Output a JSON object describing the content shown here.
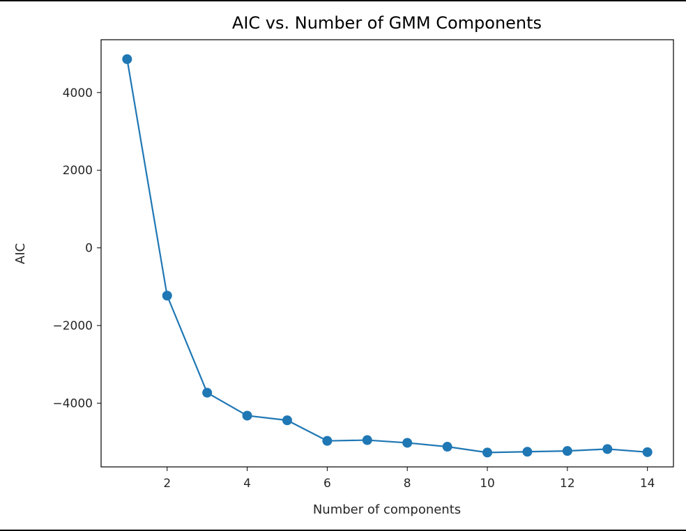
{
  "chart_data": {
    "type": "line",
    "title": "AIC vs. Number of GMM Components",
    "xlabel": "Number of components",
    "ylabel": "AIC",
    "x": [
      1,
      2,
      3,
      4,
      5,
      6,
      7,
      8,
      9,
      10,
      11,
      12,
      13,
      14
    ],
    "series": [
      {
        "values": [
          4860,
          -1230,
          -3730,
          -4320,
          -4440,
          -4970,
          -4950,
          -5020,
          -5120,
          -5270,
          -5250,
          -5230,
          -5180,
          -5260
        ]
      }
    ],
    "xticks": [
      2,
      4,
      6,
      8,
      10,
      12,
      14
    ],
    "xtick_labels": [
      "2",
      "4",
      "6",
      "8",
      "10",
      "12",
      "14"
    ],
    "yticks": [
      4000,
      2000,
      0,
      -2000,
      -4000
    ],
    "ytick_labels": [
      "4000",
      "2000",
      "0",
      "−2000",
      "−4000"
    ],
    "xlim": [
      0.35,
      14.65
    ],
    "ylim": [
      -5640,
      5360
    ],
    "markers": true,
    "grid": false,
    "color": "#1f77b4"
  }
}
